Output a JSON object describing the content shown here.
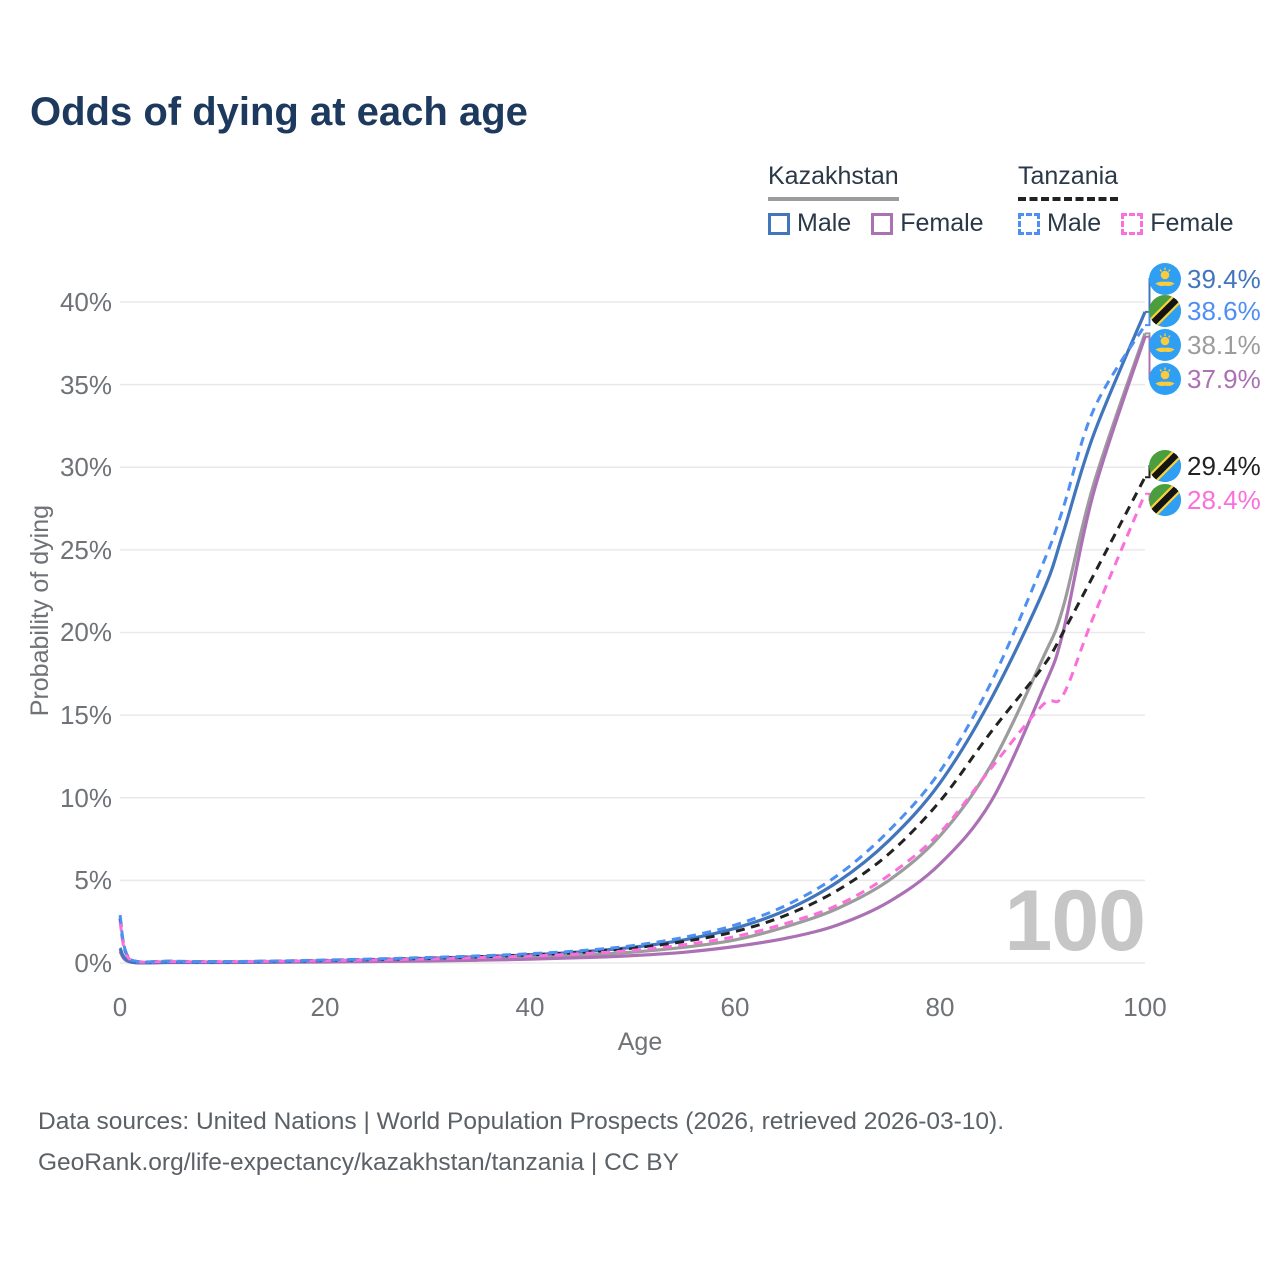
{
  "title": "Odds of dying at each age",
  "legend": {
    "groups": [
      {
        "country": "Kazakhstan",
        "items": [
          {
            "label": "Male"
          },
          {
            "label": "Female"
          }
        ]
      },
      {
        "country": "Tanzania",
        "items": [
          {
            "label": "Male"
          },
          {
            "label": "Female"
          }
        ]
      }
    ]
  },
  "chart_data": {
    "type": "line",
    "title": "Odds of dying at each age",
    "xlabel": "Age",
    "ylabel": "Probability of dying",
    "xlim": [
      0,
      100
    ],
    "ylim": [
      0,
      40
    ],
    "grid": true,
    "xtick_labels": [
      "0",
      "20",
      "40",
      "60",
      "80",
      "100"
    ],
    "ytick_labels": [
      "0%",
      "5%",
      "10%",
      "15%",
      "20%",
      "25%",
      "30%",
      "35%",
      "40%"
    ],
    "watermark": "100",
    "ages": [
      0,
      1,
      5,
      10,
      15,
      20,
      25,
      30,
      35,
      40,
      45,
      50,
      55,
      60,
      65,
      70,
      75,
      80,
      85,
      90,
      92,
      95,
      100
    ],
    "series": [
      {
        "name": "Kazakhstan Male",
        "country": "Kazakhstan",
        "sex": "Male",
        "style": "solid",
        "color": "#4175bc",
        "flag": "kazakhstan",
        "end_label": "39.4%",
        "values_pct": [
          0.9,
          0.08,
          0.05,
          0.05,
          0.08,
          0.14,
          0.2,
          0.28,
          0.38,
          0.5,
          0.68,
          0.95,
          1.4,
          2.1,
          3.2,
          4.9,
          7.4,
          10.9,
          16.0,
          22.4,
          26.0,
          32.0,
          39.4
        ]
      },
      {
        "name": "Tanzania Male",
        "country": "Tanzania",
        "sex": "Male",
        "style": "dashed",
        "color": "#4d8ff2",
        "flag": "tanzania",
        "end_label": "38.6%",
        "values_pct": [
          2.9,
          0.22,
          0.11,
          0.09,
          0.12,
          0.18,
          0.25,
          0.33,
          0.43,
          0.56,
          0.75,
          1.05,
          1.55,
          2.3,
          3.5,
          5.3,
          8.0,
          11.6,
          17.0,
          24.1,
          27.5,
          33.5,
          38.6
        ]
      },
      {
        "name": "Kazakhstan Both sexes",
        "country": "Kazakhstan",
        "sex": "Both",
        "style": "solid",
        "color": "#9c9c9c",
        "flag": "kazakhstan",
        "end_label": "38.1%",
        "values_pct": [
          0.8,
          0.07,
          0.04,
          0.04,
          0.06,
          0.1,
          0.14,
          0.19,
          0.26,
          0.35,
          0.47,
          0.66,
          0.95,
          1.4,
          2.2,
          3.3,
          5.0,
          7.7,
          12.0,
          18.4,
          21.5,
          29.0,
          38.1
        ]
      },
      {
        "name": "Kazakhstan Female",
        "country": "Kazakhstan",
        "sex": "Female",
        "style": "solid",
        "color": "#ac70b5",
        "flag": "kazakhstan",
        "end_label": "37.9%",
        "values_pct": [
          0.7,
          0.06,
          0.03,
          0.03,
          0.04,
          0.06,
          0.09,
          0.12,
          0.17,
          0.23,
          0.32,
          0.45,
          0.65,
          1.0,
          1.5,
          2.3,
          3.7,
          6.0,
          9.8,
          16.5,
          20.0,
          28.5,
          37.9
        ]
      },
      {
        "name": "Tanzania Both sexes",
        "country": "Tanzania",
        "sex": "Both",
        "style": "dashed",
        "color": "#222222",
        "flag": "tanzania",
        "end_label": "29.4%",
        "values_pct": [
          2.7,
          0.2,
          0.1,
          0.08,
          0.11,
          0.16,
          0.22,
          0.29,
          0.38,
          0.49,
          0.65,
          0.9,
          1.3,
          1.9,
          2.9,
          4.4,
          6.6,
          9.8,
          14.0,
          17.9,
          20.0,
          23.5,
          29.4
        ]
      },
      {
        "name": "Tanzania Female",
        "country": "Tanzania",
        "sex": "Female",
        "style": "dashed",
        "color": "#fa6fdc",
        "flag": "tanzania",
        "end_label": "28.4%",
        "values_pct": [
          2.5,
          0.19,
          0.09,
          0.075,
          0.1,
          0.14,
          0.19,
          0.25,
          0.33,
          0.43,
          0.56,
          0.77,
          1.1,
          1.6,
          2.4,
          3.5,
          5.3,
          7.9,
          11.8,
          15.6,
          16.2,
          21.0,
          28.4
        ]
      }
    ]
  },
  "footer": {
    "line1": "Data sources: United Nations | World Population Prospects (2026, retrieved 2026-03-10).",
    "line2": "GeoRank.org/life-expectancy/kazakhstan/tanzania | CC BY"
  }
}
